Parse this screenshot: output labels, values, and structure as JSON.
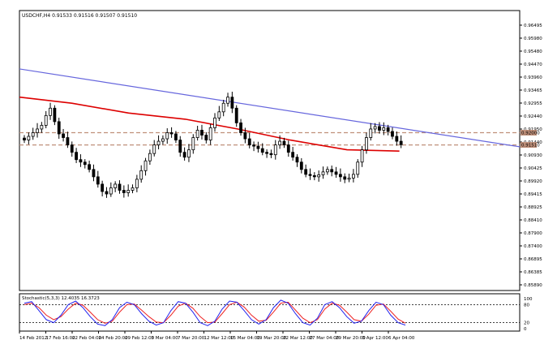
{
  "header": {
    "symbol_info": "USDCHF,H4  0.91533 0.91516 0.91507 0.91510"
  },
  "price_axis": {
    "ticks": [
      "0.96495",
      "0.95980",
      "0.95480",
      "0.94470",
      "0.93960",
      "0.93465",
      "0.92955",
      "0.92440",
      "0.91950",
      "0.91440",
      "0.90930",
      "0.90425",
      "0.89920",
      "0.89415",
      "0.88925",
      "0.88410",
      "0.87900",
      "0.87400",
      "0.86895",
      "0.86385",
      "0.85890"
    ],
    "price_max": 0.9675,
    "price_min": 0.8576,
    "current_price": "0.91510",
    "level_label": "0.92000"
  },
  "time_axis": {
    "labels": [
      "14 Feb 2012",
      "17 Feb 16:00",
      "22 Feb 04:00",
      "24 Feb 20:00",
      "29 Feb 12:00",
      "5 Mar 04:00",
      "7 Mar 20:00",
      "12 Mar 12:00",
      "15 Mar 04:00",
      "19 Mar 20:00",
      "22 Mar 12:00",
      "27 Mar 04:00",
      "29 Mar 20:00",
      "3 Apr 12:00",
      "6 Apr 04:00"
    ]
  },
  "stochastic": {
    "label": "Stochastic(5,3,3) 12.4035 16.3723",
    "levels": [
      "100",
      "80",
      "20",
      "0"
    ]
  },
  "colors": {
    "candle": "#000000",
    "ma_line": "#dd0000",
    "trend_line": "#6666dd",
    "level_line": "#c0907a",
    "stoch_main": "#2222ee",
    "stoch_signal": "#ee2222",
    "price_badge_bg": "#c0907a"
  },
  "chart_data": {
    "type": "candlestick",
    "candle_closes": [
      0.917,
      0.9185,
      0.92,
      0.9215,
      0.923,
      0.927,
      0.93,
      0.9245,
      0.9195,
      0.918,
      0.915,
      0.912,
      0.909,
      0.908,
      0.907,
      0.905,
      0.902,
      0.899,
      0.896,
      0.895,
      0.8975,
      0.899,
      0.8965,
      0.8955,
      0.8965,
      0.8975,
      0.901,
      0.9045,
      0.9085,
      0.9115,
      0.915,
      0.9165,
      0.9175,
      0.92,
      0.9195,
      0.917,
      0.912,
      0.91,
      0.913,
      0.918,
      0.921,
      0.919,
      0.917,
      0.922,
      0.926,
      0.9285,
      0.932,
      0.9345,
      0.93,
      0.924,
      0.92,
      0.9175,
      0.915,
      0.9145,
      0.9135,
      0.912,
      0.9115,
      0.911,
      0.915,
      0.9165,
      0.915,
      0.912,
      0.91,
      0.908,
      0.905,
      0.903,
      0.9025,
      0.902,
      0.9028,
      0.904,
      0.905,
      0.904,
      0.903,
      0.902,
      0.901,
      0.9015,
      0.903,
      0.908,
      0.913,
      0.918,
      0.9215,
      0.9225,
      0.921,
      0.922,
      0.9205,
      0.9185,
      0.9165,
      0.9151
    ],
    "moving_average": {
      "x": [
        0,
        12,
        25,
        38,
        50,
        62,
        75,
        87
      ],
      "values": [
        0.9345,
        0.932,
        0.928,
        0.9255,
        0.9215,
        0.917,
        0.913,
        0.9125
      ]
    },
    "trend_line": {
      "x": [
        0,
        88
      ],
      "values": [
        0.946,
        0.9215
      ]
    },
    "horizontal_levels": [
      0.92,
      0.915
    ],
    "stochastic_main": [
      85,
      90,
      60,
      30,
      20,
      45,
      80,
      92,
      70,
      40,
      15,
      10,
      30,
      70,
      88,
      80,
      50,
      25,
      12,
      20,
      60,
      90,
      85,
      55,
      20,
      10,
      25,
      65,
      92,
      88,
      60,
      30,
      15,
      30,
      70,
      95,
      85,
      50,
      20,
      12,
      35,
      80,
      90,
      70,
      40,
      18,
      25,
      60,
      88,
      80,
      45,
      20,
      12
    ],
    "stochastic_signal": [
      80,
      85,
      70,
      45,
      30,
      40,
      65,
      85,
      78,
      55,
      30,
      18,
      25,
      55,
      80,
      82,
      62,
      40,
      22,
      20,
      45,
      75,
      85,
      68,
      40,
      20,
      22,
      50,
      80,
      88,
      72,
      45,
      25,
      28,
      55,
      85,
      88,
      62,
      35,
      20,
      30,
      65,
      85,
      78,
      55,
      30,
      25,
      48,
      78,
      82,
      58,
      32,
      18
    ]
  }
}
